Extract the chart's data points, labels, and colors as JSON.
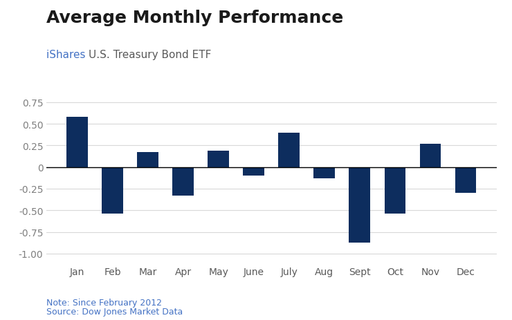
{
  "title": "Average Monthly Performance",
  "subtitle_blue": "iShares ",
  "subtitle_rest": "U.S. Treasury Bond ETF",
  "subtitle_blue_color": "#4472c4",
  "subtitle_rest_color": "#595959",
  "categories": [
    "Jan",
    "Feb",
    "Mar",
    "Apr",
    "May",
    "June",
    "July",
    "Aug",
    "Sept",
    "Oct",
    "Nov",
    "Dec"
  ],
  "values": [
    0.58,
    -0.54,
    0.17,
    -0.33,
    0.19,
    -0.1,
    0.4,
    -0.13,
    -0.87,
    -0.54,
    0.27,
    -0.3
  ],
  "bar_color": "#0d2d5e",
  "ylim": [
    -1.1,
    0.9
  ],
  "yticks": [
    -1.0,
    -0.75,
    -0.5,
    -0.25,
    0.0,
    0.25,
    0.5,
    0.75
  ],
  "note": "Note: Since February 2012",
  "source": "Source: Dow Jones Market Data",
  "note_color": "#4472c4",
  "background_color": "#ffffff",
  "grid_color": "#d9d9d9",
  "title_fontsize": 18,
  "subtitle_fontsize": 11,
  "tick_fontsize": 10,
  "note_fontsize": 9,
  "ytick_color": "#7f7f7f",
  "xtick_color": "#595959"
}
